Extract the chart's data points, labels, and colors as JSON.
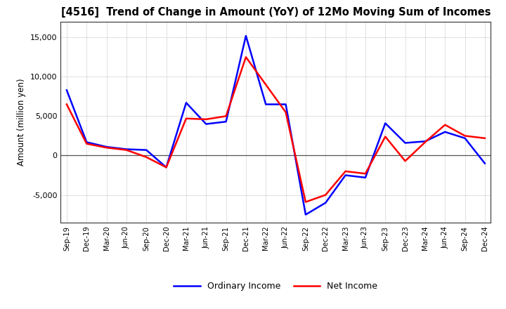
{
  "title": "[4516]  Trend of Change in Amount (YoY) of 12Mo Moving Sum of Incomes",
  "ylabel": "Amount (million yen)",
  "x_labels": [
    "Sep-19",
    "Dec-19",
    "Mar-20",
    "Jun-20",
    "Sep-20",
    "Dec-20",
    "Mar-21",
    "Jun-21",
    "Sep-21",
    "Dec-21",
    "Mar-22",
    "Jun-22",
    "Sep-22",
    "Dec-22",
    "Mar-23",
    "Jun-23",
    "Sep-23",
    "Dec-23",
    "Mar-24",
    "Jun-24",
    "Sep-24",
    "Dec-24"
  ],
  "ordinary_income": [
    8300,
    1700,
    1100,
    800,
    700,
    -1500,
    6700,
    4000,
    4300,
    15200,
    6500,
    6500,
    -7500,
    -6000,
    -2500,
    -2800,
    4100,
    1600,
    1800,
    3000,
    2200,
    -1000
  ],
  "net_income": [
    6500,
    1500,
    1000,
    700,
    -200,
    -1500,
    4700,
    4600,
    5000,
    12500,
    9000,
    5500,
    -5900,
    -5000,
    -2000,
    -2300,
    2400,
    -700,
    1700,
    3900,
    2500,
    2200
  ],
  "ordinary_color": "#0000ff",
  "net_color": "#ff0000",
  "ylim": [
    -8500,
    17000
  ],
  "yticks": [
    -5000,
    0,
    5000,
    10000,
    15000
  ],
  "background_color": "#ffffff",
  "grid_color": "#999999",
  "legend_ordinary": "Ordinary Income",
  "legend_net": "Net Income",
  "linewidth": 1.8
}
